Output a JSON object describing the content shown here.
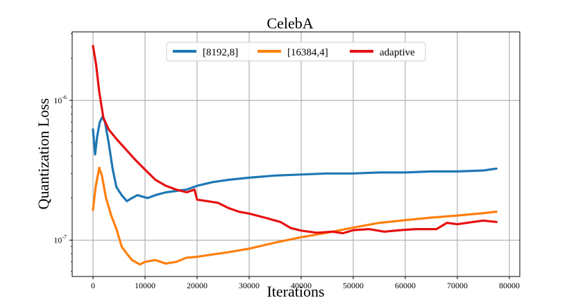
{
  "chart_data": {
    "type": "line",
    "title": "CelebA",
    "xlabel": "Iterations",
    "ylabel": "Quantization Loss",
    "xscale": "linear",
    "yscale": "log",
    "xlim": [
      -4000,
      82000
    ],
    "ylim_exp": [
      -7.26,
      -5.51
    ],
    "x_ticks": [
      {
        "value": 0,
        "label": "0"
      },
      {
        "value": 10000,
        "label": "10000"
      },
      {
        "value": 20000,
        "label": "20000"
      },
      {
        "value": 30000,
        "label": "30000"
      },
      {
        "value": 40000,
        "label": "40000"
      },
      {
        "value": 50000,
        "label": "50000"
      },
      {
        "value": 60000,
        "label": "60000"
      },
      {
        "value": 70000,
        "label": "70000"
      },
      {
        "value": 80000,
        "label": "80000"
      }
    ],
    "y_ticks": [
      {
        "exp": -6,
        "base": "10",
        "power": "-6"
      },
      {
        "exp": -7,
        "base": "10",
        "power": "-7"
      }
    ],
    "grid": true,
    "legend_position": "top-center",
    "series": [
      {
        "name": "[8192,8]",
        "color": "#1f77b4",
        "points": [
          [
            0,
            6.2e-07
          ],
          [
            400,
            4.1e-07
          ],
          [
            800,
            5.5e-07
          ],
          [
            1300,
            7e-07
          ],
          [
            1800,
            7.6e-07
          ],
          [
            2300,
            7e-07
          ],
          [
            3000,
            5e-07
          ],
          [
            3800,
            3.2e-07
          ],
          [
            4500,
            2.4e-07
          ],
          [
            5500,
            2.1e-07
          ],
          [
            6500,
            1.9e-07
          ],
          [
            7500,
            2e-07
          ],
          [
            8500,
            2.1e-07
          ],
          [
            9500,
            2.05e-07
          ],
          [
            10500,
            2e-07
          ],
          [
            12000,
            2.1e-07
          ],
          [
            14000,
            2.2e-07
          ],
          [
            16000,
            2.25e-07
          ],
          [
            18000,
            2.3e-07
          ],
          [
            20000,
            2.45e-07
          ],
          [
            23000,
            2.6e-07
          ],
          [
            26000,
            2.7e-07
          ],
          [
            30000,
            2.8e-07
          ],
          [
            35000,
            2.9e-07
          ],
          [
            40000,
            2.95e-07
          ],
          [
            45000,
            3e-07
          ],
          [
            50000,
            3e-07
          ],
          [
            55000,
            3.05e-07
          ],
          [
            60000,
            3.05e-07
          ],
          [
            65000,
            3.1e-07
          ],
          [
            70000,
            3.1e-07
          ],
          [
            75000,
            3.15e-07
          ],
          [
            77500,
            3.25e-07
          ]
        ]
      },
      {
        "name": "[16384,4]",
        "color": "#ff7f0e",
        "points": [
          [
            0,
            1.65e-07
          ],
          [
            500,
            2.4e-07
          ],
          [
            1200,
            3.3e-07
          ],
          [
            1700,
            2.9e-07
          ],
          [
            2500,
            2e-07
          ],
          [
            3500,
            1.5e-07
          ],
          [
            4500,
            1.2e-07
          ],
          [
            5500,
            9e-08
          ],
          [
            6500,
            8e-08
          ],
          [
            7500,
            7.2e-08
          ],
          [
            9000,
            6.7e-08
          ],
          [
            10000,
            7e-08
          ],
          [
            12000,
            7.2e-08
          ],
          [
            14000,
            6.8e-08
          ],
          [
            16000,
            7e-08
          ],
          [
            18000,
            7.5e-08
          ],
          [
            20000,
            7.6e-08
          ],
          [
            23000,
            7.9e-08
          ],
          [
            26000,
            8.2e-08
          ],
          [
            30000,
            8.7e-08
          ],
          [
            35000,
            9.6e-08
          ],
          [
            40000,
            1.05e-07
          ],
          [
            45000,
            1.13e-07
          ],
          [
            50000,
            1.23e-07
          ],
          [
            55000,
            1.33e-07
          ],
          [
            60000,
            1.39e-07
          ],
          [
            65000,
            1.45e-07
          ],
          [
            70000,
            1.5e-07
          ],
          [
            75000,
            1.56e-07
          ],
          [
            77500,
            1.6e-07
          ]
        ]
      },
      {
        "name": "adaptive",
        "color": "#e61010",
        "points": [
          [
            0,
            2.45e-06
          ],
          [
            600,
            1.8e-06
          ],
          [
            1200,
            1.15e-06
          ],
          [
            2000,
            7.5e-07
          ],
          [
            3000,
            6.2e-07
          ],
          [
            4500,
            5.3e-07
          ],
          [
            6000,
            4.6e-07
          ],
          [
            8000,
            3.8e-07
          ],
          [
            10000,
            3.2e-07
          ],
          [
            12000,
            2.7e-07
          ],
          [
            14000,
            2.45e-07
          ],
          [
            16000,
            2.3e-07
          ],
          [
            18000,
            2.2e-07
          ],
          [
            19500,
            2.3e-07
          ],
          [
            20000,
            1.95e-07
          ],
          [
            22000,
            1.9e-07
          ],
          [
            24000,
            1.85e-07
          ],
          [
            26000,
            1.7e-07
          ],
          [
            28000,
            1.6e-07
          ],
          [
            30000,
            1.55e-07
          ],
          [
            33000,
            1.45e-07
          ],
          [
            36000,
            1.35e-07
          ],
          [
            38000,
            1.22e-07
          ],
          [
            40000,
            1.17e-07
          ],
          [
            43000,
            1.13e-07
          ],
          [
            46000,
            1.15e-07
          ],
          [
            48000,
            1.12e-07
          ],
          [
            50000,
            1.18e-07
          ],
          [
            53000,
            1.2e-07
          ],
          [
            56000,
            1.15e-07
          ],
          [
            59000,
            1.18e-07
          ],
          [
            62000,
            1.2e-07
          ],
          [
            66000,
            1.2e-07
          ],
          [
            68000,
            1.33e-07
          ],
          [
            70000,
            1.3e-07
          ],
          [
            73000,
            1.35e-07
          ],
          [
            75000,
            1.38e-07
          ],
          [
            77500,
            1.35e-07
          ]
        ]
      }
    ]
  }
}
